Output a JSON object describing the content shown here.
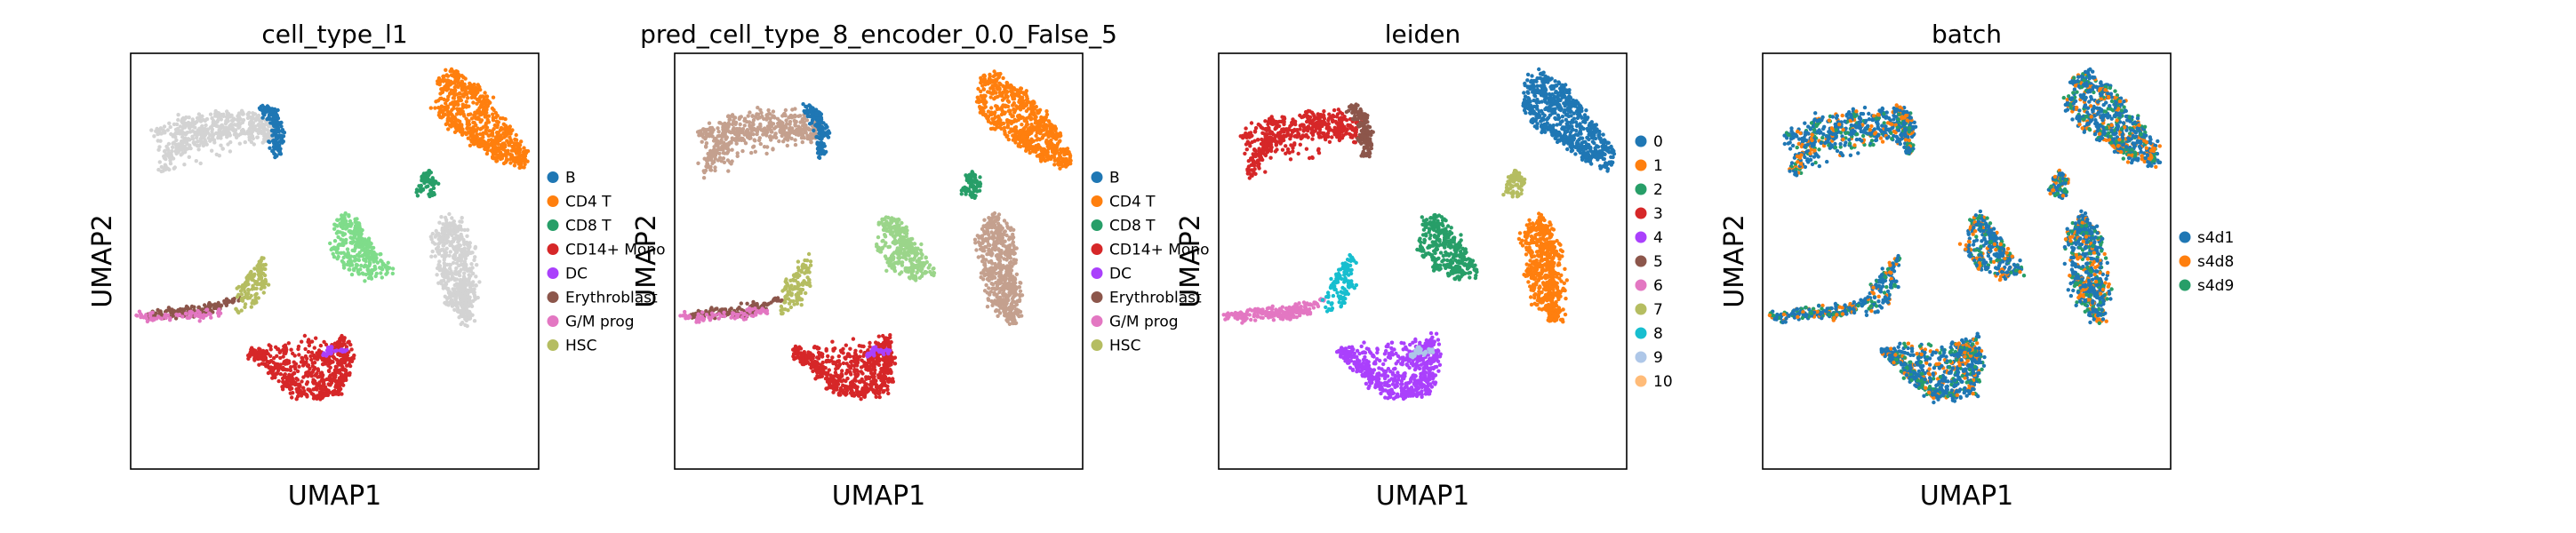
{
  "chart_data": [
    {
      "type": "scatter",
      "title": "cell_type_l1",
      "xlabel": "UMAP1",
      "ylabel": "UMAP2",
      "grid": false,
      "legend_placement": "right",
      "legend": [
        {
          "label": "B",
          "color": "#1f77b4"
        },
        {
          "label": "CD4 T",
          "color": "#ff7f0e"
        },
        {
          "label": "CD8 T",
          "color": "#279e68"
        },
        {
          "label": "CD14+ Mono",
          "color": "#d62728"
        },
        {
          "label": "DC",
          "color": "#aa40fc"
        },
        {
          "label": "Erythroblast",
          "color": "#8c564b"
        },
        {
          "label": "G/M prog",
          "color": "#e377c2"
        },
        {
          "label": "HSC",
          "color": "#b5bd61"
        }
      ]
    },
    {
      "type": "scatter",
      "title": "pred_cell_type_8_encoder_0.0_False_5",
      "xlabel": "UMAP1",
      "ylabel": "UMAP2",
      "grid": false,
      "legend_placement": "right",
      "legend": [
        {
          "label": "B",
          "color": "#1f77b4"
        },
        {
          "label": "CD4 T",
          "color": "#ff7f0e"
        },
        {
          "label": "CD8 T",
          "color": "#279e68"
        },
        {
          "label": "CD14+ Mono",
          "color": "#d62728"
        },
        {
          "label": "DC",
          "color": "#aa40fc"
        },
        {
          "label": "Erythroblast",
          "color": "#8c564b"
        },
        {
          "label": "G/M prog",
          "color": "#e377c2"
        },
        {
          "label": "HSC",
          "color": "#b5bd61"
        }
      ]
    },
    {
      "type": "scatter",
      "title": "leiden",
      "xlabel": "UMAP1",
      "ylabel": "UMAP2",
      "grid": false,
      "legend_placement": "right",
      "legend": [
        {
          "label": "0",
          "color": "#1f77b4"
        },
        {
          "label": "1",
          "color": "#ff7f0e"
        },
        {
          "label": "2",
          "color": "#279e68"
        },
        {
          "label": "3",
          "color": "#d62728"
        },
        {
          "label": "4",
          "color": "#aa40fc"
        },
        {
          "label": "5",
          "color": "#8c564b"
        },
        {
          "label": "6",
          "color": "#e377c2"
        },
        {
          "label": "7",
          "color": "#b5bd61"
        },
        {
          "label": "8",
          "color": "#17becf"
        },
        {
          "label": "9",
          "color": "#aec7e8"
        },
        {
          "label": "10",
          "color": "#ffbb78"
        }
      ]
    },
    {
      "type": "scatter",
      "title": "batch",
      "xlabel": "UMAP1",
      "ylabel": "UMAP2",
      "grid": false,
      "legend_placement": "right",
      "legend": [
        {
          "label": "s4d1",
          "color": "#1f77b4"
        },
        {
          "label": "s4d8",
          "color": "#ff7f0e"
        },
        {
          "label": "s4d9",
          "color": "#279e68"
        }
      ]
    }
  ],
  "colors": {
    "unlabeled_grey": "#d3d3d3",
    "pred_tan": "#c4a08e",
    "leiden_axis_frame": "#000000"
  }
}
